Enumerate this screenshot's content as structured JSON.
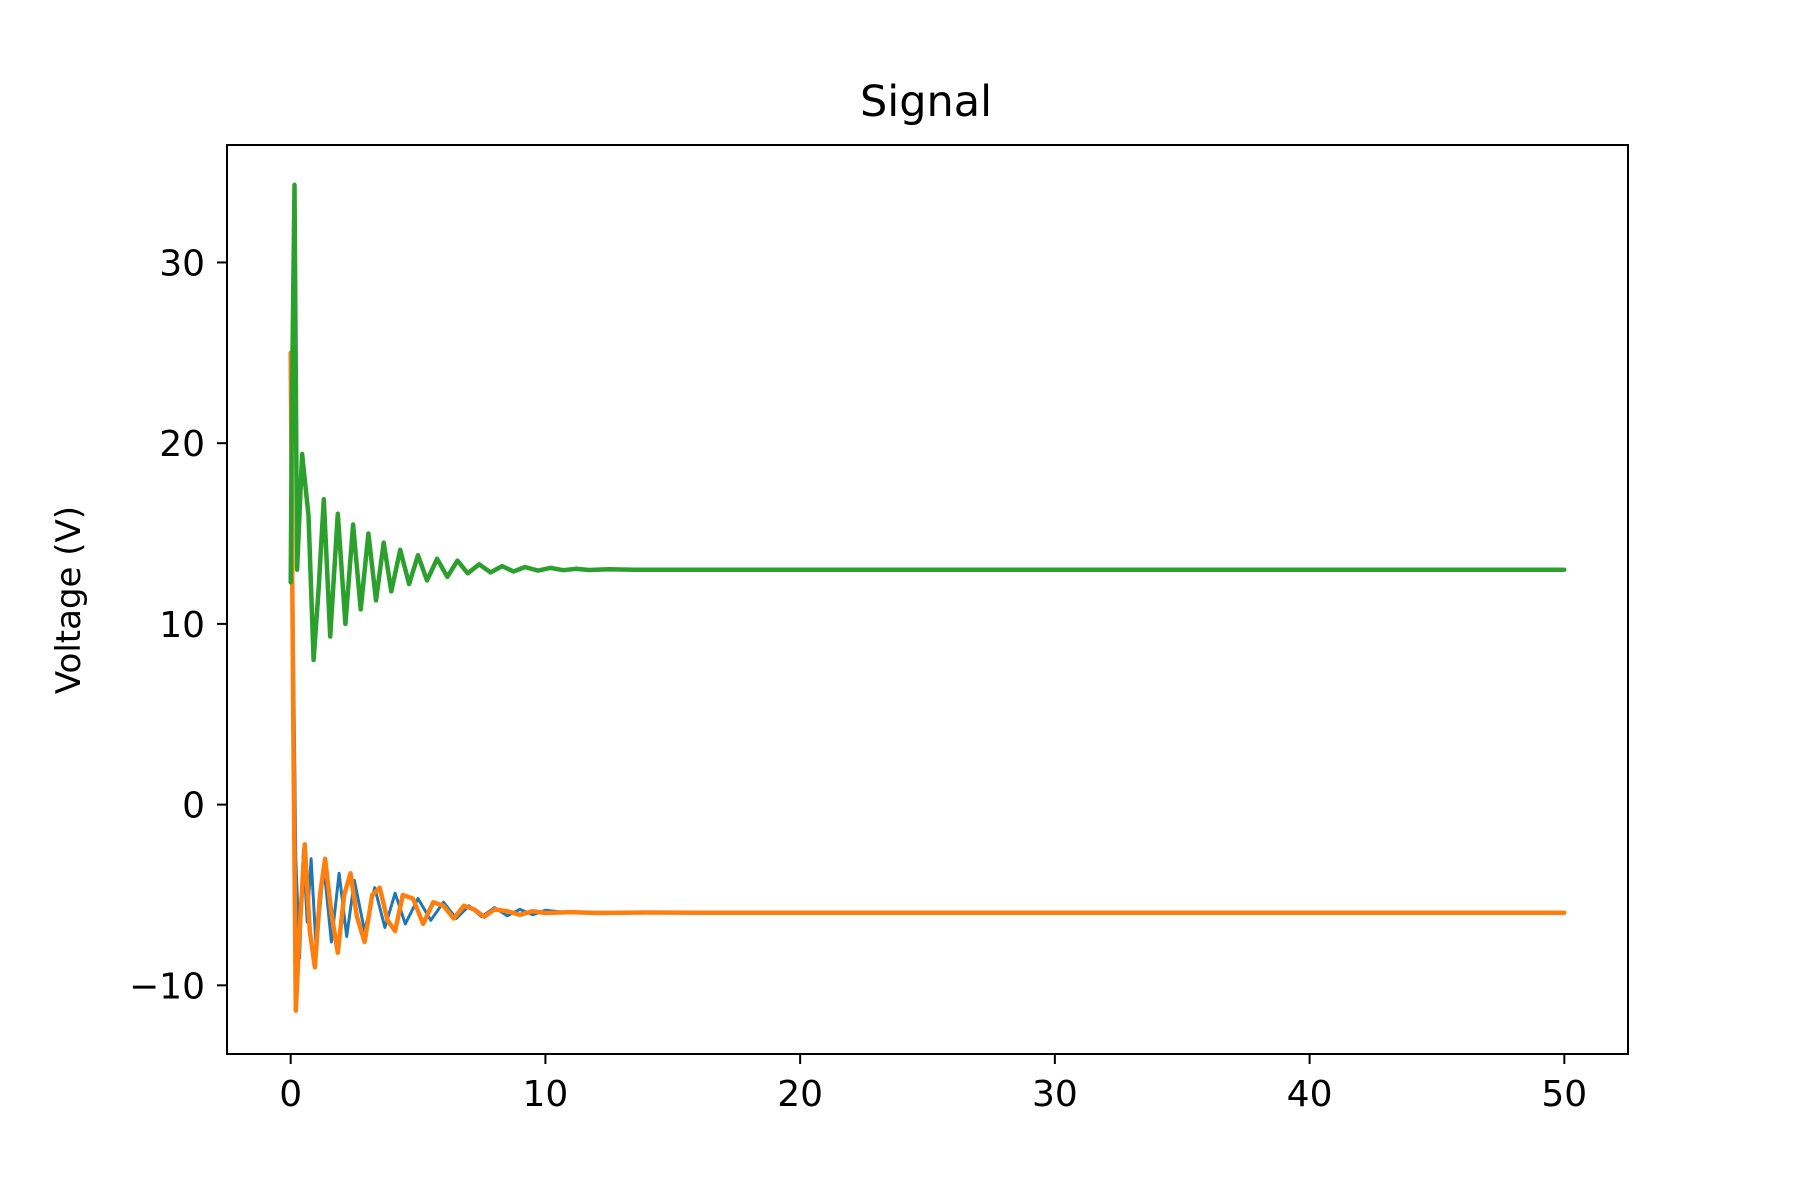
{
  "chart_data": {
    "type": "line",
    "title": "Signal",
    "xlabel": "",
    "ylabel": "Voltage (V)",
    "xlim": [
      -2.5,
      52.5
    ],
    "ylim": [
      -13.8,
      36.5
    ],
    "xticks": [
      0,
      10,
      20,
      30,
      40,
      50
    ],
    "xtick_labels": [
      "0",
      "10",
      "20",
      "30",
      "40",
      "50"
    ],
    "yticks": [
      -10,
      0,
      10,
      20,
      30
    ],
    "ytick_labels": [
      "−10",
      "0",
      "10",
      "20",
      "30"
    ],
    "grid": false,
    "legend": "none",
    "series": [
      {
        "color": "#1f77b4",
        "x": [
          0,
          0.1,
          0.2,
          0.35,
          0.5,
          0.65,
          0.8,
          1.0,
          1.3,
          1.6,
          1.9,
          2.2,
          2.5,
          2.9,
          3.3,
          3.7,
          4.1,
          4.5,
          5.0,
          5.5,
          6.0,
          6.5,
          7.0,
          7.5,
          8.0,
          8.5,
          9.0,
          9.5,
          10.0,
          11.0,
          12.0,
          13.0,
          14.0,
          16.0,
          18.0,
          20.0,
          30.0,
          40.0,
          50.0
        ],
        "y": [
          24.0,
          10.0,
          -3.0,
          -8.5,
          -2.5,
          -6.5,
          -3.0,
          -8.0,
          -3.4,
          -7.6,
          -3.8,
          -7.3,
          -4.2,
          -7.0,
          -4.6,
          -6.8,
          -4.9,
          -6.6,
          -5.2,
          -6.4,
          -5.4,
          -6.3,
          -5.6,
          -6.2,
          -5.7,
          -6.15,
          -5.8,
          -6.1,
          -5.85,
          -6.0,
          -5.95,
          -5.98,
          -5.97,
          -5.98,
          -5.98,
          -5.98,
          -5.98,
          -5.98,
          -5.98
        ]
      },
      {
        "color": "#ff7f0e",
        "x": [
          0,
          0.1,
          0.2,
          0.35,
          0.55,
          0.75,
          0.95,
          1.15,
          1.35,
          1.6,
          1.85,
          2.1,
          2.35,
          2.6,
          2.9,
          3.2,
          3.5,
          3.8,
          4.1,
          4.4,
          4.8,
          5.2,
          5.6,
          6.0,
          6.4,
          6.8,
          7.2,
          7.6,
          8.0,
          8.5,
          9.0,
          9.5,
          10.0,
          11.0,
          12.0,
          13.0,
          14.0,
          16.0,
          18.0,
          20.0,
          30.0,
          40.0,
          50.0
        ],
        "y": [
          25.0,
          5.0,
          -11.4,
          -7.0,
          -2.2,
          -7.0,
          -9.0,
          -5.0,
          -3.0,
          -6.0,
          -8.2,
          -5.0,
          -3.8,
          -6.2,
          -7.6,
          -5.0,
          -4.6,
          -6.4,
          -7.0,
          -5.0,
          -5.2,
          -6.6,
          -5.4,
          -5.6,
          -6.3,
          -5.6,
          -5.8,
          -6.2,
          -5.8,
          -5.9,
          -6.1,
          -5.9,
          -6.0,
          -5.95,
          -6.0,
          -5.98,
          -5.97,
          -5.98,
          -5.98,
          -5.98,
          -5.98,
          -5.98,
          -5.98
        ]
      },
      {
        "color": "#2ca02c",
        "x": [
          0,
          0.05,
          0.15,
          0.25,
          0.45,
          0.7,
          0.9,
          1.1,
          1.3,
          1.55,
          1.85,
          2.15,
          2.45,
          2.75,
          3.05,
          3.35,
          3.65,
          3.95,
          4.3,
          4.65,
          5.0,
          5.35,
          5.75,
          6.15,
          6.55,
          6.95,
          7.4,
          7.85,
          8.3,
          8.75,
          9.2,
          9.7,
          10.2,
          10.7,
          11.2,
          11.7,
          12.5,
          13.5,
          15.0,
          17.0,
          20.0,
          30.0,
          40.0,
          50.0
        ],
        "y": [
          12.3,
          22.5,
          34.3,
          13.0,
          19.4,
          16.0,
          8.0,
          12.0,
          16.9,
          9.3,
          16.1,
          10.0,
          15.5,
          10.8,
          15.0,
          11.3,
          14.5,
          11.8,
          14.1,
          12.2,
          13.8,
          12.4,
          13.6,
          12.6,
          13.5,
          12.8,
          13.3,
          12.85,
          13.2,
          12.9,
          13.15,
          12.95,
          13.1,
          12.97,
          13.05,
          12.98,
          13.02,
          13.0,
          13.0,
          13.0,
          13.0,
          13.0,
          13.0,
          13.0
        ]
      }
    ]
  }
}
